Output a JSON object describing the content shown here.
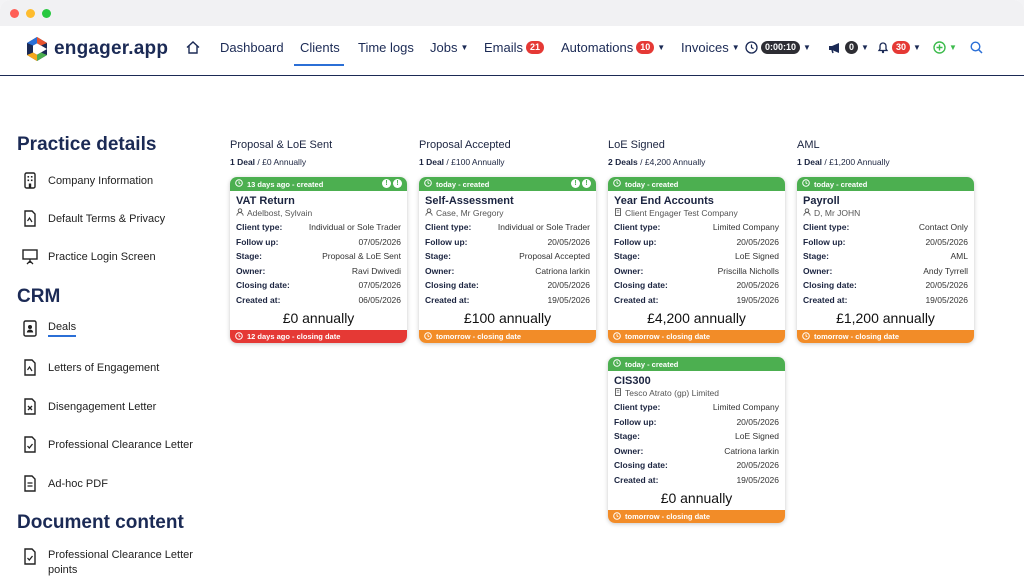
{
  "app": {
    "logo_text": "engager.app"
  },
  "nav": {
    "items": [
      {
        "label": "Dashboard"
      },
      {
        "label": "Clients"
      },
      {
        "label": "Time logs"
      },
      {
        "label": "Jobs"
      },
      {
        "label": "Emails",
        "badge": "21"
      },
      {
        "label": "Automations",
        "badge": "10"
      },
      {
        "label": "Invoices"
      }
    ],
    "timer": "0:00:10",
    "announcements_badge": "0",
    "notifications_badge": "30"
  },
  "sidebar": {
    "sections": [
      {
        "title": "Practice details",
        "items": [
          "Company Information",
          "Default Terms & Privacy",
          "Practice Login Screen"
        ]
      },
      {
        "title": "CRM",
        "items": [
          "Deals",
          "Letters of Engagement",
          "Disengagement Letter",
          "Professional Clearance Letter",
          "Ad-hoc PDF"
        ]
      },
      {
        "title": "Document content",
        "items": [
          "Professional Clearance Letter points"
        ]
      }
    ]
  },
  "labels": {
    "client_type": "Client type:",
    "follow_up": "Follow up:",
    "stage": "Stage:",
    "owner": "Owner:",
    "closing_date": "Closing date:",
    "created_at": "Created at:"
  },
  "columns": [
    {
      "title": "Proposal & LoE Sent",
      "summary_count": "1 Deal",
      "summary_value": " / £0 Annually",
      "cards": [
        {
          "top": "13 days ago - created",
          "title": "VAT Return",
          "client": "Adelbost, Sylvain",
          "client_type": "Individual or Sole Trader",
          "follow_up": "07/05/2026",
          "stage": "Proposal & LoE Sent",
          "owner": "Ravi Dwivedi",
          "closing_date": "07/05/2026",
          "created_at": "06/05/2026",
          "amount": "£0 annually",
          "bottom": "12 days ago - closing date",
          "bottom_color": "red"
        }
      ]
    },
    {
      "title": "Proposal Accepted",
      "summary_count": "1 Deal",
      "summary_value": " / £100 Annually",
      "cards": [
        {
          "top": "today - created",
          "title": "Self-Assessment",
          "client": "Case, Mr Gregory",
          "client_type": "Individual or Sole Trader",
          "follow_up": "20/05/2026",
          "stage": "Proposal Accepted",
          "owner": "Catriona larkin",
          "closing_date": "20/05/2026",
          "created_at": "19/05/2026",
          "amount": "£100 annually",
          "bottom": "tomorrow - closing date",
          "bottom_color": "orange"
        }
      ]
    },
    {
      "title": "LoE Signed",
      "summary_count": "2 Deals",
      "summary_value": " / £4,200 Annually",
      "cards": [
        {
          "top": "today - created",
          "title": "Year End Accounts",
          "client": "Client Engager Test Company",
          "client_type": "Limited Company",
          "follow_up": "20/05/2026",
          "stage": "LoE Signed",
          "owner": "Priscilla Nicholls",
          "closing_date": "20/05/2026",
          "created_at": "19/05/2026",
          "amount": "£4,200 annually",
          "bottom": "tomorrow - closing date",
          "bottom_color": "orange"
        },
        {
          "top": "today - created",
          "title": "CIS300",
          "client": "Tesco Atrato (gp) Limited",
          "client_type": "Limited Company",
          "follow_up": "20/05/2026",
          "stage": "LoE Signed",
          "owner": "Catriona larkin",
          "closing_date": "20/05/2026",
          "created_at": "19/05/2026",
          "amount": "£0 annually",
          "bottom": "tomorrow - closing date",
          "bottom_color": "orange"
        }
      ]
    },
    {
      "title": "AML",
      "summary_count": "1 Deal",
      "summary_value": " / £1,200 Annually",
      "cards": [
        {
          "top": "today - created",
          "title": "Payroll",
          "client": "D, Mr JOHN",
          "client_type": "Contact Only",
          "follow_up": "20/05/2026",
          "stage": "AML",
          "owner": "Andy Tyrrell",
          "closing_date": "20/05/2026",
          "created_at": "19/05/2026",
          "amount": "£1,200 annually",
          "bottom": "tomorrow - closing date",
          "bottom_color": "orange"
        }
      ]
    }
  ]
}
